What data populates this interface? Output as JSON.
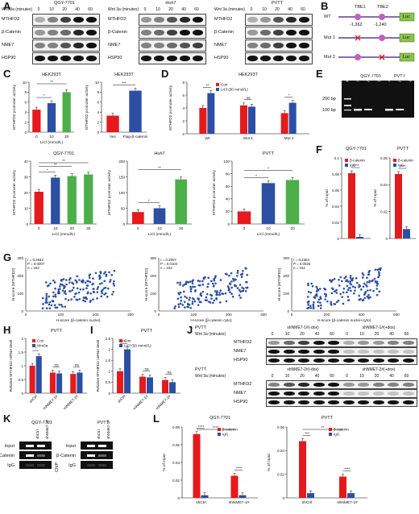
{
  "panels": {
    "A": "A",
    "B": "B",
    "C": "C",
    "D": "D",
    "E": "E",
    "F": "F",
    "G": "G",
    "H": "H",
    "I": "I",
    "J": "J",
    "K": "K",
    "L": "L"
  },
  "panel_A": {
    "wnt_label": "Wnt 3a (minutes)",
    "times": [
      "0",
      "10",
      "20",
      "40",
      "60"
    ],
    "blots": [
      {
        "title": "QGY-7701",
        "rows": [
          "MTHFD2",
          "β-Catenin",
          "NME7",
          "HSP90"
        ]
      },
      {
        "title": "Huh7",
        "rows": [
          "MTHFD2",
          "β-Catenin",
          "NME7",
          "HSP90"
        ]
      },
      {
        "title": "PVTT",
        "rows": [
          "MTHFD2",
          "β-Catenin",
          "NME7",
          "HSP90"
        ]
      }
    ]
  },
  "panel_B": {
    "tbe1": "TBE1",
    "tbe2": "TBE2",
    "pos1": "-1,362",
    "pos2": "-1,240",
    "rows": [
      "WT",
      "Mut 1",
      "Mut 2"
    ],
    "luc": "Luc"
  },
  "panel_E": {
    "groups": [
      "QGY-7701",
      "PVTT"
    ],
    "markers": [
      "200 bp",
      "100 bp"
    ],
    "lanes": [
      "Marker",
      "Input",
      "β-Catenin",
      "IgG",
      "Input",
      "β-Catenin",
      "IgG"
    ]
  },
  "panel_G": {
    "ylabel": "H-score (MTHFD2)",
    "n_label": "n = 162",
    "plots": [
      {
        "xlabel": "H-score (β-catenin nuclei)",
        "r": "r = 0.2642",
        "p": "P = 0.0007",
        "xmax": 300,
        "xticks": [
          0,
          100,
          200,
          300
        ]
      },
      {
        "xlabel": "H-score (β-catenin cyto)",
        "r": "r = 0.2007",
        "p": "P = 0.0104",
        "xmax": 300,
        "xticks": [
          0,
          100,
          200,
          300
        ]
      },
      {
        "xlabel": "H-score (β-catenin nuclei+cyto)",
        "r": "r = 0.2364",
        "p": "P = 0.0025",
        "xmax": 600,
        "xticks": [
          0,
          200,
          400,
          600
        ]
      }
    ],
    "yticks": [
      0,
      100,
      200,
      300
    ]
  },
  "panel_J": {
    "cell": "PVTT",
    "wnt_label": "Wnt 3a (minutes)",
    "top_groups": [
      "shNME7-1#(-dox)",
      "shNME7-1#(+dox)"
    ],
    "bot_groups": [
      "shNME7-2#(-dox)",
      "shNME7-2#(+dox)"
    ],
    "times": [
      "0",
      "10",
      "20",
      "40",
      "60",
      "0",
      "10",
      "20",
      "40",
      "60"
    ],
    "rows": [
      "MTHFD2",
      "NME7",
      "HSP90"
    ]
  },
  "panel_K": {
    "cells": [
      "QGY-7701",
      "PVTT"
    ],
    "lanes": [
      "shCtrl",
      "shNME7-1#"
    ],
    "rows": [
      "Input",
      "β-Catenin",
      "IgG"
    ],
    "chip": "ChIP"
  },
  "chart_data": [
    {
      "id": "C1",
      "type": "bar",
      "title": "HEK293T",
      "categories": [
        "0",
        "10",
        "20"
      ],
      "values": [
        4.5,
        5.8,
        8.0
      ],
      "colors": [
        "#e41a1c",
        "#2c4fa3",
        "#4daf4a"
      ],
      "xlabel": "LiCl (mmol/L)",
      "ylabel": "MTHFD2 promoter activity",
      "ylim": [
        0,
        10
      ],
      "yticks": [
        0,
        2,
        4,
        6,
        8,
        10
      ],
      "sig": [
        [
          "0",
          "10",
          "*"
        ],
        [
          "0",
          "20",
          "**"
        ]
      ]
    },
    {
      "id": "C2",
      "type": "bar",
      "title": "HEK293T",
      "categories": [
        "Vec",
        "Flag-β-catenin"
      ],
      "values": [
        3.3,
        8.3
      ],
      "colors": [
        "#e41a1c",
        "#2c4fa3"
      ],
      "xlabel": "",
      "ylabel": "MTHFD2 promoter activity",
      "ylim": [
        0,
        10
      ],
      "yticks": [
        0,
        2,
        4,
        6,
        8,
        10
      ],
      "sig": [
        [
          "Vec",
          "Flag-β-catenin",
          "***"
        ]
      ]
    },
    {
      "id": "D",
      "type": "bar",
      "title": "HEK293T",
      "categories": [
        "Wt",
        "Mut 1",
        "Mut 2"
      ],
      "series": [
        {
          "name": "Con",
          "values": [
            4.0,
            4.4,
            3.2
          ],
          "color": "#e41a1c"
        },
        {
          "name": "LiCl (30 mmol/L)",
          "values": [
            6.3,
            4.2,
            4.8
          ],
          "color": "#2c4fa3"
        }
      ],
      "ylabel": "MTHFD2 promoter activity",
      "ylim": [
        0,
        8
      ],
      "yticks": [
        0,
        2,
        4,
        6,
        8
      ],
      "sig": [
        "**",
        "ns",
        "*"
      ]
    },
    {
      "id": "C3",
      "type": "bar",
      "title": "QGY-7701",
      "categories": [
        "0",
        "10",
        "20",
        "30"
      ],
      "values": [
        20.5,
        29.5,
        30.5,
        31.5
      ],
      "colors": [
        "#e41a1c",
        "#2c4fa3",
        "#4daf4a",
        "#4daf4a"
      ],
      "xlabel": "LiCl (mmol/L)",
      "ylabel": "MTHFD2 promoter activity",
      "ylim": [
        0,
        40
      ],
      "yticks": [
        0,
        10,
        20,
        30,
        40
      ],
      "sig": [
        [
          "0",
          "10",
          "*"
        ],
        [
          "0",
          "20",
          "**"
        ],
        [
          "0",
          "30",
          "**"
        ]
      ]
    },
    {
      "id": "C4",
      "type": "bar",
      "title": "Huh7",
      "categories": [
        "0",
        "10",
        "20"
      ],
      "values": [
        38,
        50,
        142
      ],
      "colors": [
        "#e41a1c",
        "#2c4fa3",
        "#4daf4a"
      ],
      "xlabel": "LiCl (mmol/L)",
      "ylabel": "MTHFD2 promoter activity",
      "ylim": [
        0,
        200
      ],
      "yticks": [
        0,
        50,
        100,
        150,
        200
      ],
      "sig": [
        [
          "0",
          "10",
          "*"
        ],
        [
          "0",
          "20",
          "**"
        ]
      ]
    },
    {
      "id": "C5",
      "type": "bar",
      "title": "PVTT",
      "categories": [
        "0",
        "10",
        "20"
      ],
      "values": [
        20,
        65,
        70
      ],
      "colors": [
        "#e41a1c",
        "#2c4fa3",
        "#4daf4a"
      ],
      "xlabel": "LiCl (mmol/L)",
      "ylabel": "MTHFD2 promoter activity",
      "ylim": [
        0,
        100
      ],
      "yticks": [
        0,
        20,
        40,
        60,
        80,
        100
      ],
      "sig": [
        [
          "0",
          "10",
          "*"
        ],
        [
          "0",
          "20",
          "*"
        ]
      ]
    },
    {
      "id": "F1",
      "type": "bar",
      "title": "QGY-7701",
      "categories": [
        ""
      ],
      "series": [
        {
          "name": "β-catenin",
          "values": [
            0.081
          ],
          "color": "#e41a1c"
        },
        {
          "name": "IgG",
          "values": [
            0.002
          ],
          "color": "#2c4fa3"
        }
      ],
      "ylabel": "% of Input",
      "ylim": [
        0,
        0.1
      ],
      "yticks": [
        0,
        0.02,
        0.04,
        0.06,
        0.08,
        0.1
      ],
      "sig": [
        "****"
      ]
    },
    {
      "id": "F2",
      "type": "bar",
      "title": "PVTT",
      "categories": [
        ""
      ],
      "series": [
        {
          "name": "β-catenin",
          "values": [
            0.048
          ],
          "color": "#e41a1c"
        },
        {
          "name": "IgG",
          "values": [
            0.007
          ],
          "color": "#2c4fa3"
        }
      ],
      "ylabel": "% of Input",
      "ylim": [
        0,
        0.06
      ],
      "yticks": [
        0,
        0.02,
        0.04,
        0.06
      ],
      "sig": [
        "****"
      ]
    },
    {
      "id": "H",
      "type": "bar",
      "title": "PVTT",
      "categories": [
        "shCtrl",
        "shNME7-1#",
        "shNME7-2#"
      ],
      "series": [
        {
          "name": "Con",
          "values": [
            1.0,
            0.75,
            0.7
          ],
          "color": "#e41a1c"
        },
        {
          "name": "Wnt3a",
          "values": [
            1.35,
            0.72,
            0.75
          ],
          "color": "#2c4fa3"
        }
      ],
      "ylabel": "Relative MTHFD2 mRNA level",
      "ylim": [
        0,
        2.0
      ],
      "yticks": [
        0,
        0.5,
        1.0,
        1.5,
        2.0
      ],
      "sig": [
        "*",
        "ns",
        "ns"
      ]
    },
    {
      "id": "I",
      "type": "bar",
      "title": "PVTT",
      "categories": [
        "shCtrl",
        "shNME7-1#",
        "shNME7-2#"
      ],
      "series": [
        {
          "name": "Con",
          "values": [
            1.0,
            0.75,
            0.6
          ],
          "color": "#e41a1c"
        },
        {
          "name": "LiCl (50 mmol/L)",
          "values": [
            2.0,
            0.72,
            0.5
          ],
          "color": "#2c4fa3"
        }
      ],
      "ylabel": "Relative MTHFD2 mRNA level",
      "ylim": [
        0,
        2.5
      ],
      "yticks": [
        0,
        0.5,
        1.0,
        1.5,
        2.0,
        2.5
      ],
      "sig": [
        "***",
        "ns",
        "ns"
      ]
    },
    {
      "id": "L1",
      "type": "bar",
      "title": "QGY-7701",
      "categories": [
        "shCtrl",
        "shNME7-1#"
      ],
      "series": [
        {
          "name": "β-catenin",
          "values": [
            0.072,
            0.025
          ],
          "color": "#e41a1c"
        },
        {
          "name": "IgG",
          "values": [
            0.003,
            0.003
          ],
          "color": "#2c4fa3"
        }
      ],
      "ylabel": "% of Input",
      "ylim": [
        0,
        0.08
      ],
      "yticks": [
        0,
        0.02,
        0.04,
        0.06,
        0.08
      ],
      "sig": [
        "****",
        "****"
      ],
      "between": "****"
    },
    {
      "id": "L2",
      "type": "bar",
      "title": "PVTT",
      "categories": [
        "shCtrl",
        "shNME7-1#"
      ],
      "series": [
        {
          "name": "β-catenin",
          "values": [
            0.048,
            0.018
          ],
          "color": "#e41a1c"
        },
        {
          "name": "IgG",
          "values": [
            0.004,
            0.004
          ],
          "color": "#2c4fa3"
        }
      ],
      "ylabel": "% of Input",
      "ylim": [
        0,
        0.06
      ],
      "yticks": [
        0,
        0.02,
        0.04,
        0.06
      ],
      "sig": [
        "***",
        "****"
      ],
      "between": "**"
    }
  ]
}
